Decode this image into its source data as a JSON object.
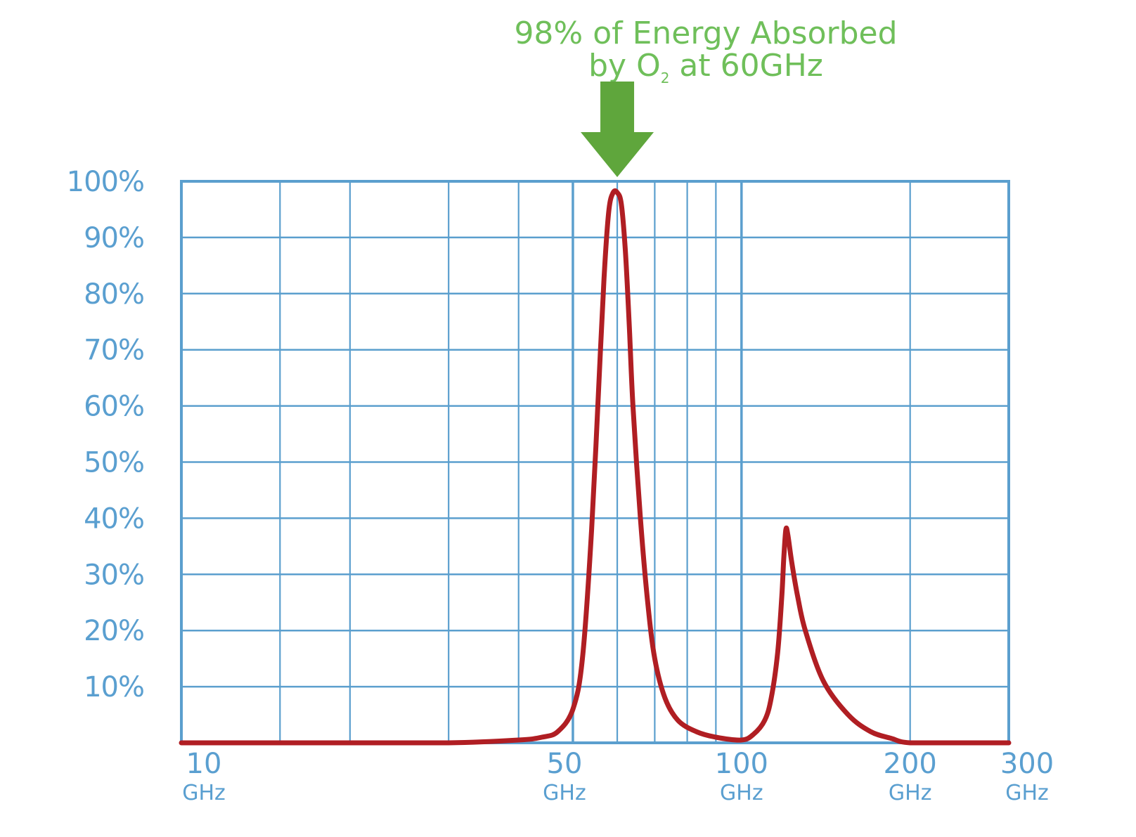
{
  "chart_data": {
    "type": "line",
    "title": "",
    "xlabel": "",
    "ylabel": "",
    "x_scale": "log",
    "xlim": [
      10,
      300
    ],
    "ylim": [
      0,
      100
    ],
    "y_ticks": [
      {
        "value": 10,
        "label": "10%"
      },
      {
        "value": 20,
        "label": "20%"
      },
      {
        "value": 30,
        "label": "30%"
      },
      {
        "value": 40,
        "label": "40%"
      },
      {
        "value": 50,
        "label": "50%"
      },
      {
        "value": 60,
        "label": "60%"
      },
      {
        "value": 70,
        "label": "70%"
      },
      {
        "value": 80,
        "label": "80%"
      },
      {
        "value": 90,
        "label": "90%"
      },
      {
        "value": 100,
        "label": "100%"
      }
    ],
    "x_ticks": [
      {
        "value": 10,
        "label": "10",
        "unit": "GHz"
      },
      {
        "value": 50,
        "label": "50",
        "unit": "GHz"
      },
      {
        "value": 100,
        "label": "100",
        "unit": "GHz"
      },
      {
        "value": 200,
        "label": "200",
        "unit": "GHz"
      },
      {
        "value": 300,
        "label": "300",
        "unit": "GHz"
      }
    ],
    "x_gridlines": [
      10,
      15,
      20,
      30,
      40,
      50,
      60,
      70,
      80,
      90,
      100,
      200,
      300
    ],
    "grid": true,
    "series": [
      {
        "color": "#b01e23",
        "x": [
          10,
          15,
          20,
          30,
          40,
          44,
          47,
          50,
          52,
          54,
          56,
          57,
          58,
          59,
          60,
          61,
          62,
          63,
          64,
          66,
          68,
          70,
          73,
          77,
          83,
          90,
          100,
          105,
          110,
          113,
          116,
          118,
          119,
          120,
          121,
          123,
          126,
          130,
          140,
          155,
          170,
          185,
          200,
          250,
          300
        ],
        "y": [
          0,
          0,
          0,
          0,
          0.5,
          1,
          2,
          6,
          15,
          38,
          70,
          85,
          95,
          98,
          98,
          96,
          88,
          75,
          60,
          40,
          25,
          15,
          8,
          4,
          2,
          1,
          0.5,
          1.5,
          4,
          8,
          16,
          26,
          33,
          38,
          37,
          32,
          26,
          20,
          11,
          5,
          2,
          0.8,
          0,
          0,
          0
        ]
      }
    ],
    "annotations": [
      {
        "text_before": "98% of Energy Absorbed",
        "line2_before": "by O",
        "subscript": "2",
        "line2_after": " at 60GHz",
        "target_x": 60,
        "color": "#6fbf5a",
        "arrow_color": "#5fa63c"
      }
    ],
    "colors": {
      "grid": "#5b9fce",
      "ticks": "#5a9fd0",
      "line": "#b01e23",
      "annotation": "#6fbf5a",
      "arrow": "#5fa63c"
    }
  }
}
